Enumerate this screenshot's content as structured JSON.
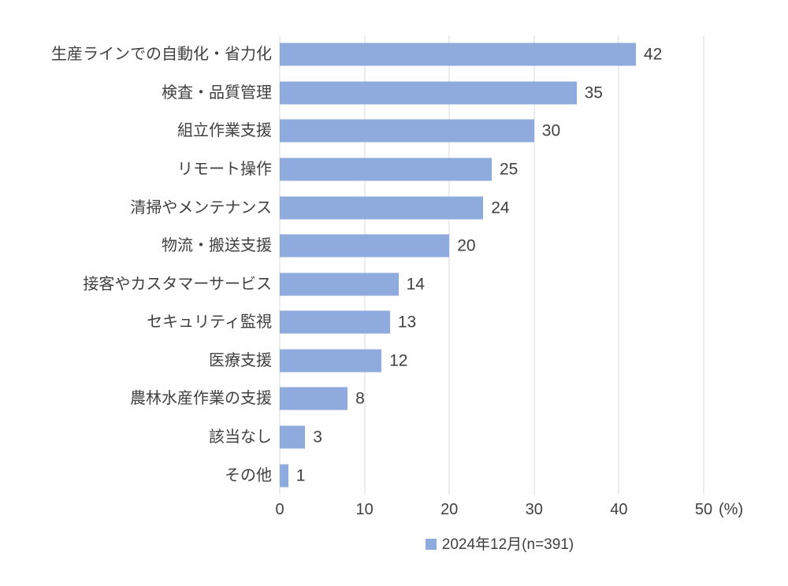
{
  "chart_data": {
    "type": "bar",
    "orientation": "horizontal",
    "title": "",
    "categories": [
      "生産ラインでの自動化・省力化",
      "検査・品質管理",
      "組立作業支援",
      "リモート操作",
      "清掃やメンテナンス",
      "物流・搬送支援",
      "接客やカスタマーサービス",
      "セキュリティ監視",
      "医療支援",
      "農林水産作業の支援",
      "該当なし",
      "その他"
    ],
    "values": [
      42,
      35,
      30,
      25,
      24,
      20,
      14,
      13,
      12,
      8,
      3,
      1
    ],
    "series": [
      {
        "name": "2024年12月(n=391)",
        "values": [
          42,
          35,
          30,
          25,
          24,
          20,
          14,
          13,
          12,
          8,
          3,
          1
        ]
      }
    ],
    "xlabel": "(%)",
    "ylabel": "",
    "xlim": [
      0,
      50
    ],
    "xticks": [
      "0",
      "10",
      "20",
      "30",
      "40",
      "50"
    ],
    "grid": true,
    "legend_position": "bottom",
    "bar_color": "#8FAADC",
    "gridline_color": "#D9D9D9",
    "text_color": "#404040"
  },
  "axis": {
    "unit": "(%)"
  },
  "legend": {
    "label": "2024年12月(n=391)"
  }
}
